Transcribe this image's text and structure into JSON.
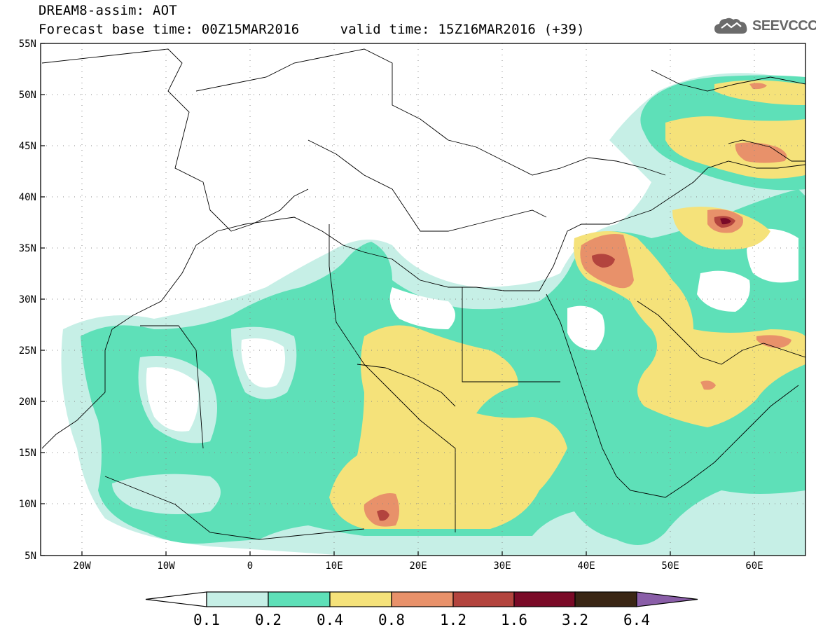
{
  "header": {
    "title": "DREAM8-assim: AOT",
    "base_time_label": "Forecast base time: 00Z15MAR2016",
    "valid_time_label": "valid time: 15Z16MAR2016 (+39)",
    "logo_text": "SEEVCCC"
  },
  "axes": {
    "lat_labels": [
      "55N",
      "50N",
      "45N",
      "40N",
      "35N",
      "30N",
      "25N",
      "20N",
      "15N",
      "10N",
      "5N"
    ],
    "lon_labels": [
      "20W",
      "10W",
      "0",
      "10E",
      "20E",
      "30E",
      "40E",
      "50E",
      "60E"
    ]
  },
  "legend": {
    "labels": [
      "0.1",
      "0.2",
      "0.4",
      "0.8",
      "1.2",
      "1.6",
      "3.2",
      "6.4"
    ],
    "colors": [
      "#ffffff",
      "#c6efe6",
      "#5ee0b8",
      "#f5e27a",
      "#e8916a",
      "#b3443e",
      "#7a0a27",
      "#3a2615",
      "#8a5ea8"
    ]
  }
}
